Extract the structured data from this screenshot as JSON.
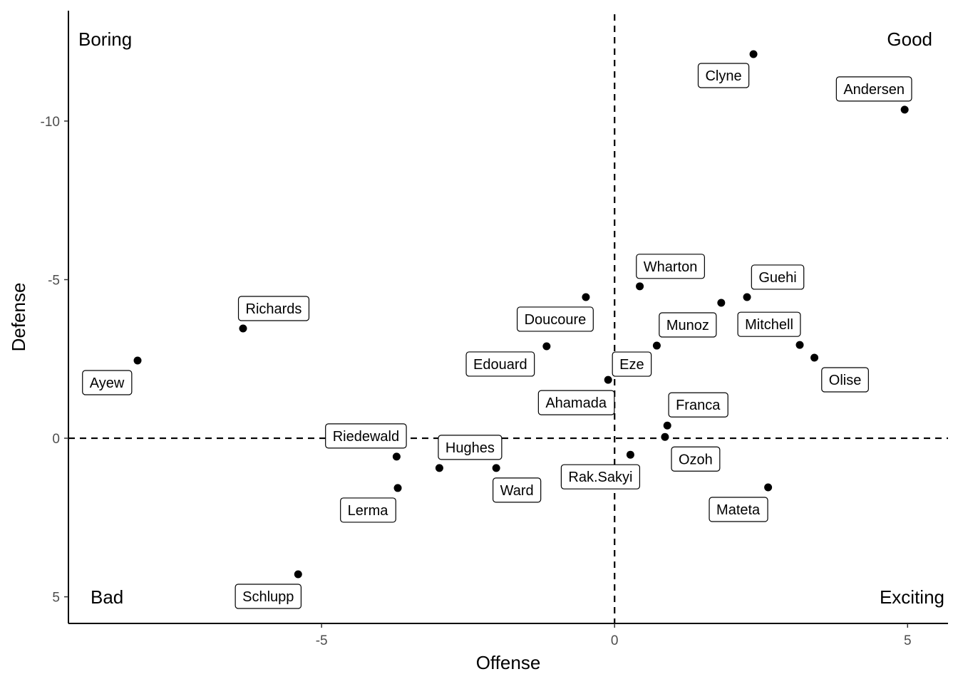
{
  "chart_data": {
    "type": "scatter",
    "xlabel": "Offense",
    "ylabel": "Defense",
    "xlim": [
      -9.32,
      5.69
    ],
    "ylim": [
      -13.48,
      5.84
    ],
    "y_reversed": true,
    "grid": false,
    "xticks": [
      -5,
      0,
      5
    ],
    "yticks": [
      -10,
      -5,
      0,
      5
    ],
    "reference_lines": {
      "x": 0,
      "y": 0,
      "style": "dashed"
    },
    "quadrant_labels": {
      "top_left": "Boring",
      "top_right": "Good",
      "bottom_left": "Bad",
      "bottom_right": "Exciting"
    },
    "point_color": "#000000",
    "points": [
      {
        "label": "Clyne",
        "x": 2.37,
        "y": -12.11
      },
      {
        "label": "Andersen",
        "x": 4.95,
        "y": -10.36
      },
      {
        "label": "Wharton",
        "x": 0.43,
        "y": -4.79
      },
      {
        "label": "Guehi",
        "x": 2.26,
        "y": -4.45
      },
      {
        "label": "Richards",
        "x": -6.34,
        "y": -3.46
      },
      {
        "label": "Doucoure",
        "x": -0.49,
        "y": -4.45
      },
      {
        "label": "Munoz",
        "x": 1.82,
        "y": -4.27
      },
      {
        "label": "Mitchell",
        "x": 3.16,
        "y": -2.94
      },
      {
        "label": "Ayew",
        "x": -8.14,
        "y": -2.45
      },
      {
        "label": "Edouard",
        "x": -1.16,
        "y": -2.9
      },
      {
        "label": "Eze",
        "x": 0.72,
        "y": -2.92
      },
      {
        "label": "Olise",
        "x": 3.41,
        "y": -2.54
      },
      {
        "label": "Ahamada",
        "x": -0.11,
        "y": -1.84
      },
      {
        "label": "Franca",
        "x": 0.9,
        "y": -0.4
      },
      {
        "label": "Riedewald",
        "x": -3.72,
        "y": 0.58
      },
      {
        "label": "Hughes",
        "x": -2.99,
        "y": 0.94
      },
      {
        "label": "Ozoh",
        "x": 0.86,
        "y": -0.04
      },
      {
        "label": "Rak.Sakyi",
        "x": 0.27,
        "y": 0.52
      },
      {
        "label": "Ward",
        "x": -2.02,
        "y": 0.94
      },
      {
        "label": "Lerma",
        "x": -3.7,
        "y": 1.57
      },
      {
        "label": "Mateta",
        "x": 2.62,
        "y": 1.55
      },
      {
        "label": "Schlupp",
        "x": -5.4,
        "y": 4.29
      }
    ]
  }
}
